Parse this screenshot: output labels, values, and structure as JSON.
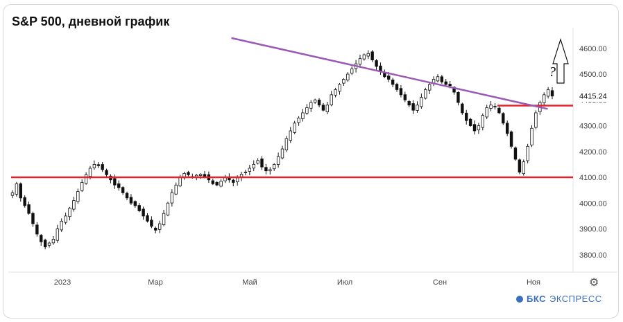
{
  "title": "S&P 500, дневной график",
  "brand": {
    "name": "БКС",
    "suffix": "ЭКСПРЕСС"
  },
  "settings_icon": "gear-icon",
  "chart_data": {
    "type": "candlestick",
    "y_ticks": [
      4600,
      4500,
      4400,
      4300,
      4200,
      4100,
      4000,
      3900,
      3800
    ],
    "y_tick_labels": [
      "4600.00",
      "4500.00",
      "4400.00",
      "4300.00",
      "4200.00",
      "4100.00",
      "4000.00",
      "3900.00",
      "3800.00"
    ],
    "ylim": [
      3735,
      4680
    ],
    "x_tick_labels": [
      "2023",
      "Мар",
      "Май",
      "Июл",
      "Сен",
      "Ноя"
    ],
    "current_price": 4415.24,
    "current_price_label": "4415.24",
    "closes": [
      4040,
      4075,
      4020,
      3990,
      3960,
      3920,
      3880,
      3850,
      3830,
      3845,
      3860,
      3900,
      3930,
      3950,
      3980,
      4010,
      4045,
      4080,
      4110,
      4135,
      4150,
      4145,
      4130,
      4110,
      4090,
      4070,
      4060,
      4040,
      4020,
      4000,
      3990,
      3970,
      3950,
      3930,
      3910,
      3895,
      3920,
      3960,
      4000,
      4040,
      4070,
      4100,
      4115,
      4110,
      4100,
      4108,
      4112,
      4104,
      4090,
      4075,
      4070,
      4085,
      4100,
      4090,
      4080,
      4098,
      4112,
      4120,
      4135,
      4150,
      4165,
      4140,
      4125,
      4130,
      4150,
      4180,
      4210,
      4250,
      4280,
      4310,
      4330,
      4350,
      4370,
      4390,
      4400,
      4380,
      4360,
      4380,
      4420,
      4440,
      4460,
      4480,
      4500,
      4520,
      4540,
      4560,
      4575,
      4580,
      4555,
      4530,
      4510,
      4490,
      4480,
      4460,
      4440,
      4420,
      4400,
      4380,
      4360,
      4380,
      4410,
      4440,
      4460,
      4480,
      4490,
      4470,
      4460,
      4455,
      4430,
      4390,
      4350,
      4320,
      4300,
      4280,
      4300,
      4340,
      4370,
      4380,
      4375,
      4350,
      4310,
      4270,
      4220,
      4170,
      4120,
      4160,
      4220,
      4290,
      4350,
      4390,
      4420,
      4440,
      4415
    ],
    "levels": [
      {
        "value": 4100,
        "color": "#e8202a"
      },
      {
        "value": 4378,
        "color": "#e8202a"
      }
    ],
    "trendline": {
      "from": [
        0.395,
        4640
      ],
      "to": [
        0.955,
        4365
      ],
      "color": "#9b59b6"
    },
    "annotation": {
      "text": "?",
      "arrow": "up"
    },
    "colors": {
      "candle": "#111111",
      "level": "#e8202a",
      "trend": "#9b59b6"
    },
    "grid": false,
    "legend": "none"
  }
}
